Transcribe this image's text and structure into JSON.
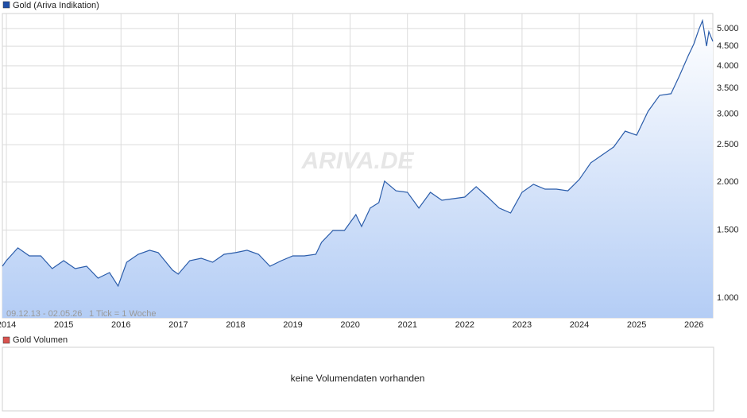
{
  "chart_data": {
    "type": "line",
    "log_scale": true,
    "grid": true,
    "x": [
      2013.93,
      2014.0,
      2014.2,
      2014.4,
      2014.6,
      2014.8,
      2015.0,
      2015.2,
      2015.4,
      2015.6,
      2015.8,
      2015.95,
      2016.1,
      2016.3,
      2016.5,
      2016.65,
      2016.9,
      2017.0,
      2017.2,
      2017.4,
      2017.6,
      2017.8,
      2018.0,
      2018.2,
      2018.4,
      2018.6,
      2018.8,
      2019.0,
      2019.2,
      2019.4,
      2019.5,
      2019.7,
      2019.9,
      2020.1,
      2020.2,
      2020.35,
      2020.5,
      2020.6,
      2020.8,
      2021.0,
      2021.2,
      2021.4,
      2021.6,
      2021.8,
      2022.0,
      2022.2,
      2022.4,
      2022.6,
      2022.8,
      2023.0,
      2023.2,
      2023.4,
      2023.6,
      2023.8,
      2024.0,
      2024.2,
      2024.4,
      2024.6,
      2024.8,
      2025.0,
      2025.2,
      2025.4,
      2025.6,
      2025.75,
      2025.9,
      2026.0,
      2026.08,
      2026.15,
      2026.22,
      2026.26,
      2026.33
    ],
    "series": [
      {
        "name": "Gold (Ariva Indikation)",
        "color": "#2a5caa",
        "values": [
          1209,
          1250,
          1349,
          1286,
          1286,
          1192,
          1250,
          1192,
          1209,
          1126,
          1164,
          1074,
          1238,
          1298,
          1330,
          1311,
          1181,
          1153,
          1250,
          1268,
          1238,
          1298,
          1311,
          1330,
          1298,
          1209,
          1250,
          1286,
          1286,
          1298,
          1394,
          1497,
          1497,
          1646,
          1533,
          1711,
          1767,
          2010,
          1897,
          1880,
          1711,
          1880,
          1793,
          1810,
          1827,
          1944,
          1827,
          1711,
          1662,
          1880,
          1972,
          1916,
          1916,
          1897,
          2030,
          2242,
          2351,
          2465,
          2710,
          2645,
          3050,
          3355,
          3389,
          3779,
          4250,
          4565,
          4947,
          5240,
          4503,
          4909,
          4630
        ]
      }
    ],
    "xlim": [
      2013.93,
      2026.33
    ],
    "xticks": [
      2014,
      2015,
      2016,
      2017,
      2018,
      2019,
      2020,
      2021,
      2022,
      2023,
      2024,
      2025,
      2026
    ],
    "ylim": [
      888,
      5470
    ],
    "yticks": [
      {
        "value": 1000,
        "label": "1.000"
      },
      {
        "value": 1500,
        "label": "1.500"
      },
      {
        "value": 2000,
        "label": "2.000"
      },
      {
        "value": 2500,
        "label": "2.500"
      },
      {
        "value": 3000,
        "label": "3.000"
      },
      {
        "value": 3500,
        "label": "3.500"
      },
      {
        "value": 4000,
        "label": "4.000"
      },
      {
        "value": 4500,
        "label": "4.500"
      },
      {
        "value": 5000,
        "label": "5.000"
      }
    ],
    "range_label": "09.12.13 - 02.05.26",
    "tick_note": "1 Tick = 1 Woche",
    "watermark": "ARIVA.DE"
  },
  "volume_panel": {
    "title": "Gold Volumen",
    "message": "keine Volumendaten vorhanden"
  }
}
